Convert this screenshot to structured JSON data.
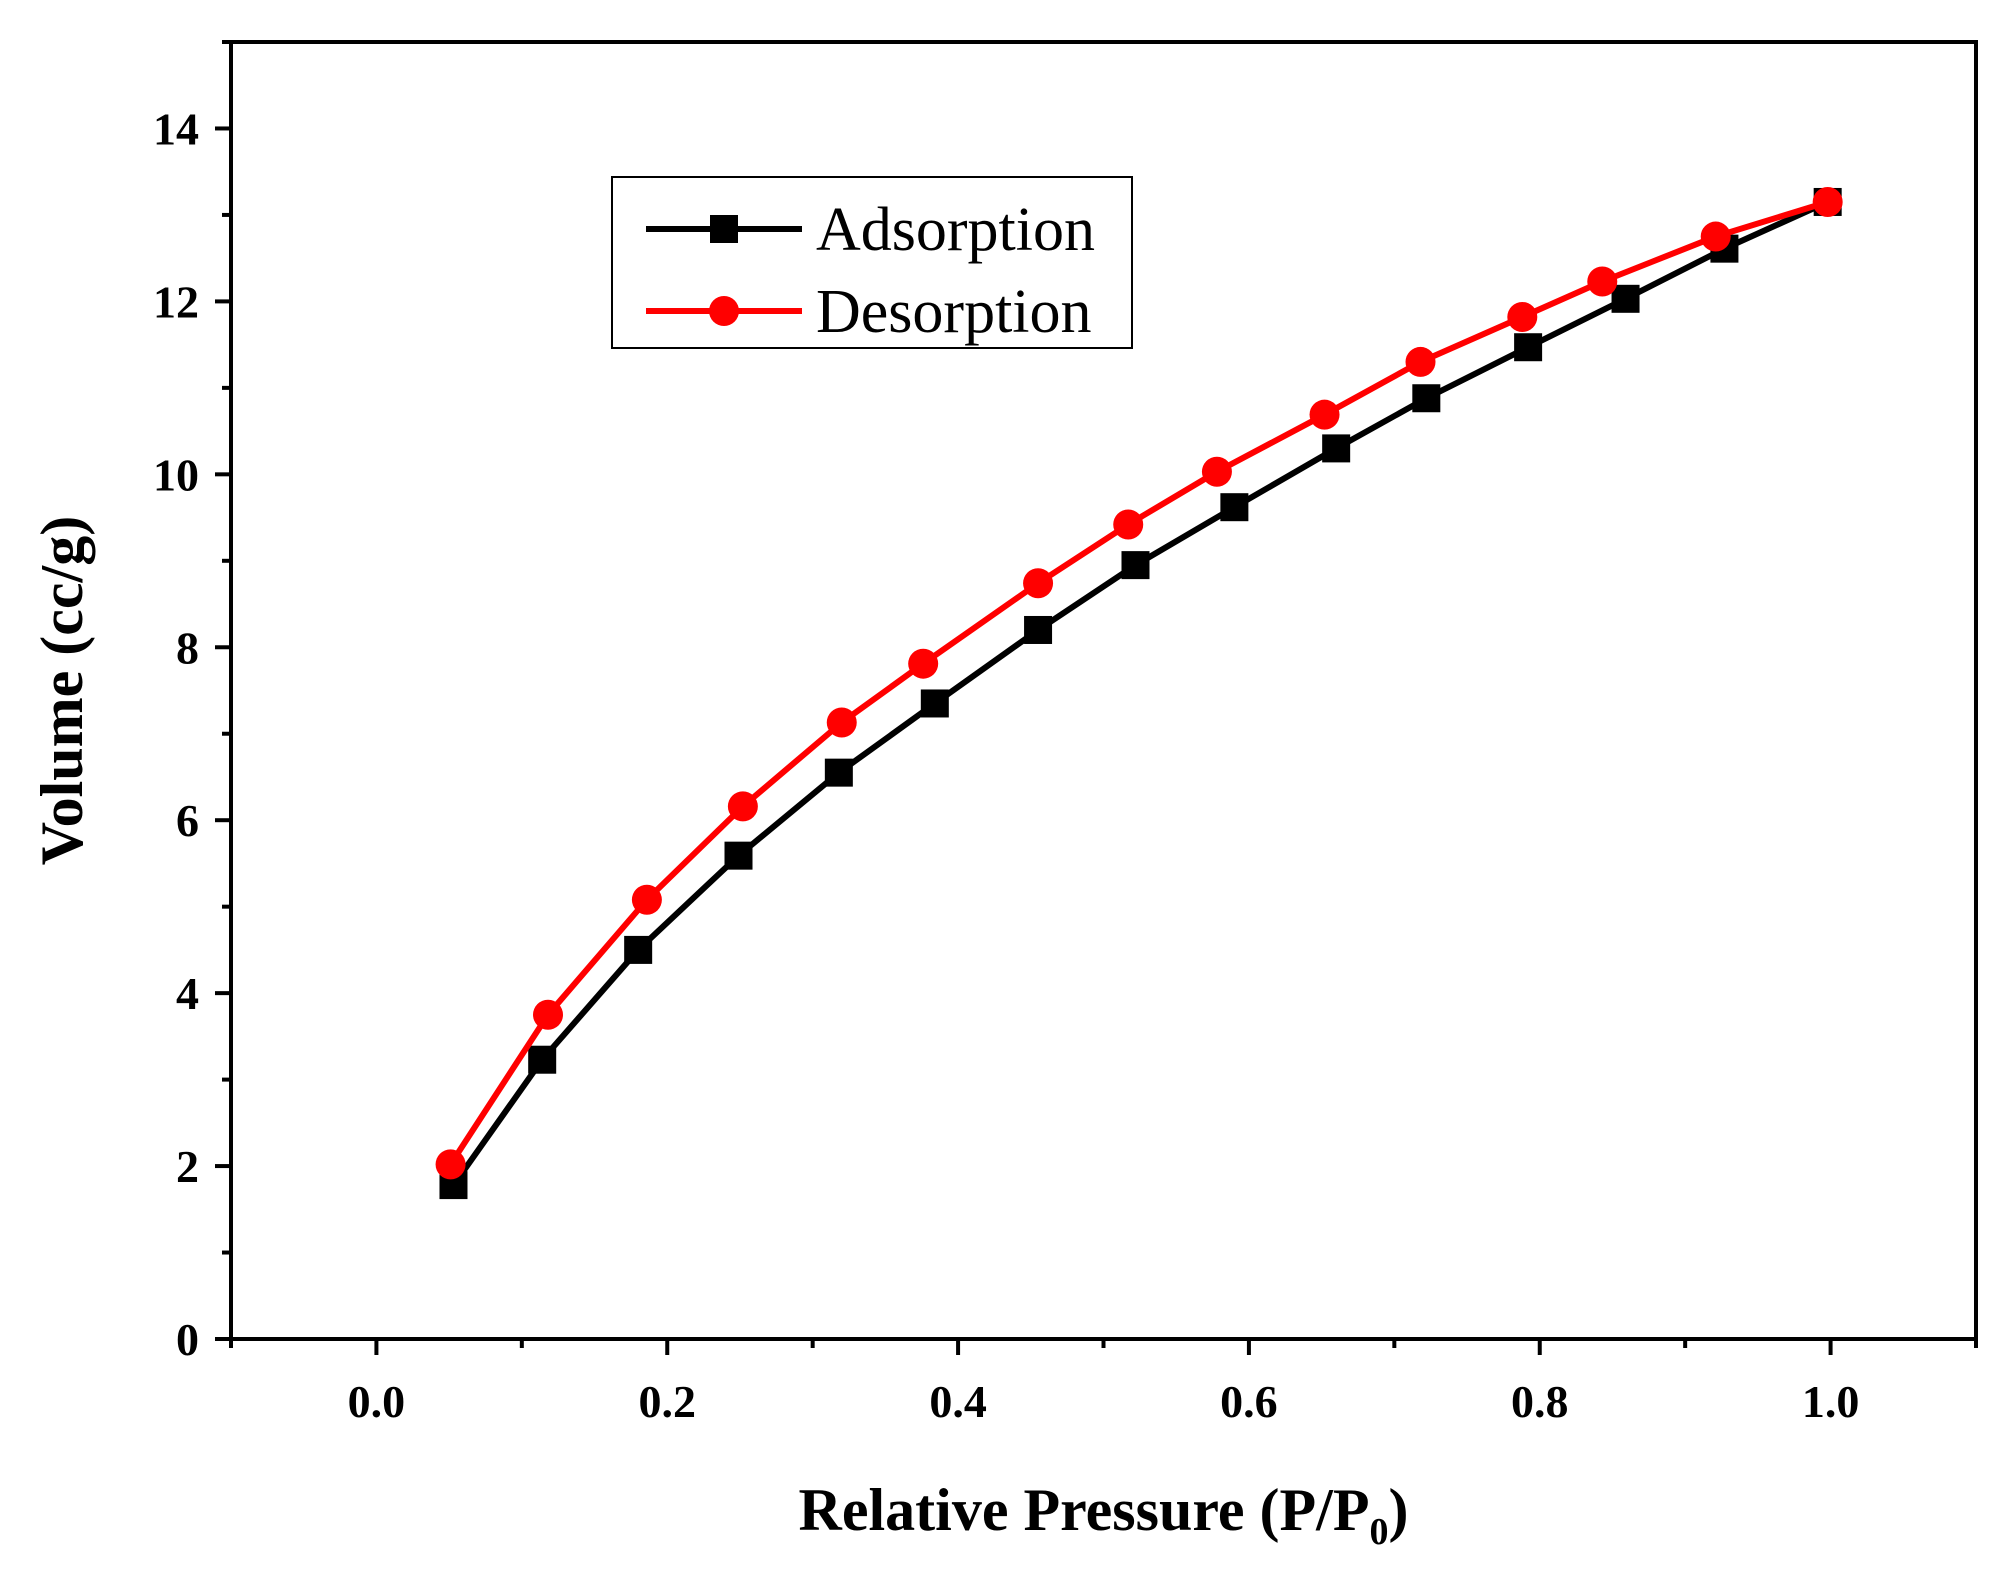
{
  "chart_data": {
    "type": "line",
    "title": "",
    "xlabel": "Relative Pressure (P/P",
    "xlabel_subscript": "0",
    "xlabel_suffix": ")",
    "ylabel": "Volume (cc/g)",
    "xlim": [
      -0.1,
      1.1
    ],
    "ylim": [
      0,
      15
    ],
    "x_ticks": [
      0.0,
      0.2,
      0.4,
      0.6,
      0.8,
      1.0
    ],
    "x_tick_labels": [
      "0.0",
      "0.2",
      "0.4",
      "0.6",
      "0.8",
      "1.0"
    ],
    "y_ticks": [
      0,
      2,
      4,
      6,
      8,
      10,
      12,
      14
    ],
    "y_tick_labels": [
      "0",
      "2",
      "4",
      "6",
      "8",
      "10",
      "12",
      "14"
    ],
    "grid": false,
    "legend_position": "top-left",
    "series": [
      {
        "name": "Adsorption",
        "color": "#000000",
        "marker": "square",
        "x": [
          0.053,
          0.114,
          0.18,
          0.249,
          0.318,
          0.384,
          0.455,
          0.522,
          0.59,
          0.66,
          0.722,
          0.792,
          0.859,
          0.927,
          0.998
        ],
        "y": [
          1.78,
          3.23,
          4.5,
          5.59,
          6.55,
          7.35,
          8.2,
          8.95,
          9.62,
          10.3,
          10.88,
          11.47,
          12.03,
          12.61,
          13.15
        ]
      },
      {
        "name": "Desorption",
        "color": "#ff0000",
        "marker": "circle",
        "x": [
          0.051,
          0.118,
          0.186,
          0.252,
          0.32,
          0.376,
          0.455,
          0.517,
          0.578,
          0.652,
          0.718,
          0.788,
          0.843,
          0.921,
          0.998
        ],
        "y": [
          2.02,
          3.75,
          5.08,
          6.16,
          7.13,
          7.81,
          8.74,
          9.42,
          10.03,
          10.69,
          11.3,
          11.82,
          12.23,
          12.75,
          13.15
        ]
      }
    ]
  }
}
